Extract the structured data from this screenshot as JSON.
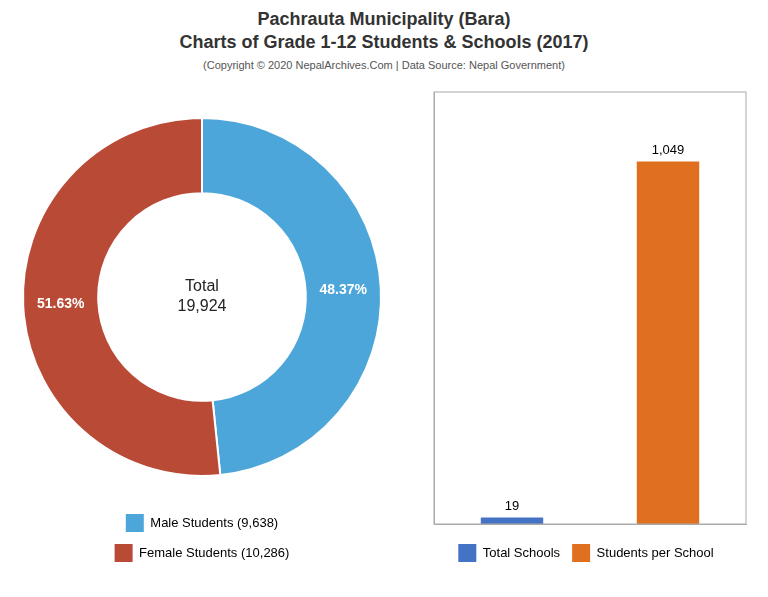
{
  "title": "Pachrauta Municipality (Bara)\nCharts of Grade 1-12 Students & Schools (2017)",
  "subtitle": "(Copyright © 2020 NepalArchives.Com | Data Source: Nepal Government)",
  "chart_data": [
    {
      "type": "doughnut",
      "categories": [
        "Male Students (9,638)",
        "Female Students (10,286)"
      ],
      "values": [
        48.37,
        51.63
      ],
      "value_labels": [
        "48.37%",
        "51.63%"
      ],
      "colors": [
        "#4da6d9",
        "#b94a36"
      ],
      "data_labels": true,
      "annotations": [
        "Total\n19,924"
      ],
      "legend": "bottom"
    },
    {
      "type": "bar",
      "categories": [
        "Total Schools",
        "Students per School"
      ],
      "values": [
        19,
        1049
      ],
      "value_labels": [
        "19",
        "1,049"
      ],
      "colors": [
        "#4472c4",
        "#e07020"
      ],
      "data_labels": true,
      "ylim": [
        0,
        1250
      ],
      "tick_labels": false,
      "grid": false,
      "legend": "bottom"
    }
  ]
}
